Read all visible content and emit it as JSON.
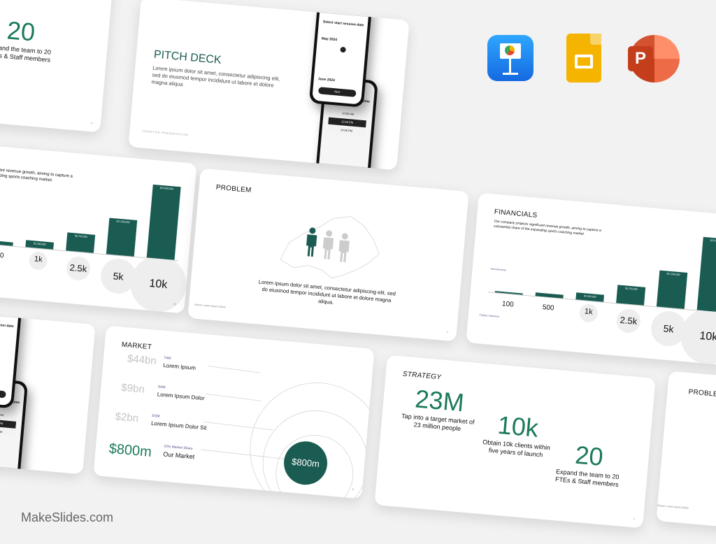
{
  "brand": "MakeSlides.com",
  "apps": [
    {
      "name": "Keynote",
      "color": "#1a8cf5"
    },
    {
      "name": "Google Slides",
      "color": "#f4b400"
    },
    {
      "name": "PowerPoint",
      "color": "#d24726"
    }
  ],
  "colors": {
    "accent": "#1a5c52",
    "number": "#1b7a5a",
    "tag": "#5a4d8a"
  },
  "strategy": {
    "title": "STRATEGY",
    "stats": [
      {
        "value": "23M",
        "caption": "Tap into a target market of 23 million people"
      },
      {
        "value": "10k",
        "caption": "Obtain 10k clients within five years of launch"
      },
      {
        "value": "20",
        "caption": "Expand the team to 20 FTEs & Staff members"
      }
    ],
    "page": "4"
  },
  "pitch": {
    "title": "PITCH DECK",
    "body": "Lorem ipsum dolor sit amet, consectetur adipiscing elit, sed do eiusmod tempor incididunt ut labore et dolore magna aliqua",
    "footer": "INVESTOR PRESENTATION"
  },
  "phones": {
    "date_title": "Select start session date",
    "month1": "May 2024",
    "month2": "June 2024",
    "next": "Next",
    "time_title": "Select start session time",
    "times": [
      "10:00 AM",
      "12:00 PM",
      "14:00 PM"
    ]
  },
  "financials": {
    "title": "FINANCIALS",
    "desc": "Our company projects significant revenue growth, aiming to capture a substantial share of the expanding sports coaching market.",
    "revenue_label": "Total Revenue",
    "customers_label": "Paying Customers",
    "bars": [
      {
        "customers": "100",
        "revenue": 230000,
        "label": "$230,000"
      },
      {
        "customers": "500",
        "revenue": 1150000,
        "label": "$1,150,000"
      },
      {
        "customers": "1k",
        "revenue": 2300000,
        "label": "$2,300,000"
      },
      {
        "customers": "2.5k",
        "revenue": 5750000,
        "label": "$5,750,000"
      },
      {
        "customers": "5k",
        "revenue": 11500000,
        "label": "$11,500,000"
      },
      {
        "customers": "10k",
        "revenue": 23000000,
        "label": "$23,000,000"
      }
    ],
    "page": "10"
  },
  "problem": {
    "title": "PROBLEM",
    "body": "Lorem ipsum dolor sit amet, consectetur adipiscing elit, sed do eiusmod tempor incididunt ut labore et dolore magna aliqua.",
    "source": "Source: Lorem Ipsum (2024)",
    "page": "2"
  },
  "market": {
    "title": "MARKET",
    "rows": [
      {
        "value": "$44bn",
        "tag": "TAM",
        "label": "Lorem Ipsum"
      },
      {
        "value": "$9bn",
        "tag": "SAM",
        "label": "Lorem Ipsum Dolor"
      },
      {
        "value": "$2bn",
        "tag": "SOM",
        "label": "Lorem Ipsum Dolor Sit"
      },
      {
        "value": "$800m",
        "tag": "10% Market Share",
        "label": "Our Market"
      }
    ],
    "circle_value": "$800m",
    "page": "6"
  }
}
